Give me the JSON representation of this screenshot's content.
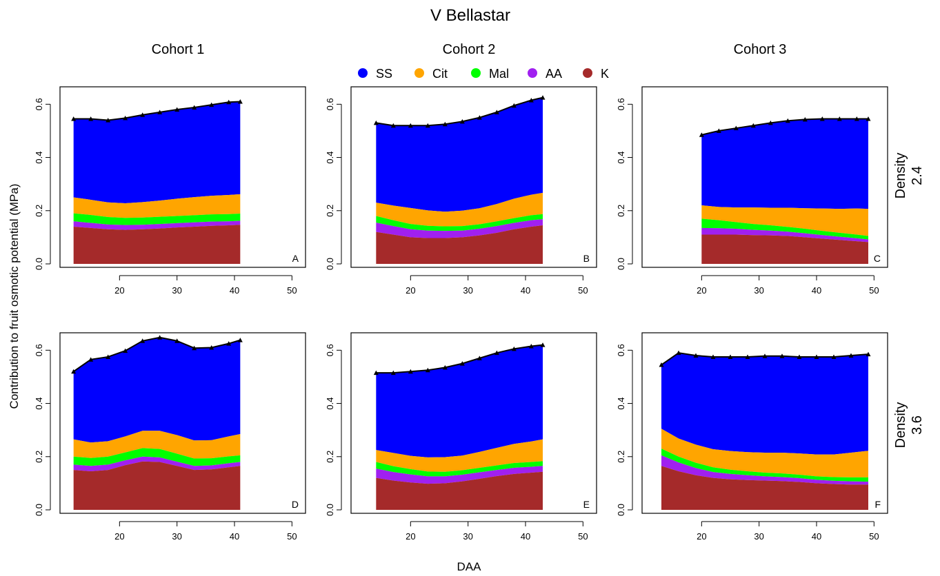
{
  "title": "V Bellastar",
  "xlabel": "DAA",
  "ylabel": "Contribution to fruit osmotic potential (MPa)",
  "columns": [
    "Cohort 1",
    "Cohort 2",
    "Cohort 3"
  ],
  "rows": [
    [
      "Density",
      "2.4"
    ],
    [
      "Density",
      "3.6"
    ]
  ],
  "colors": {
    "SS": "#0000FF",
    "Cit": "#FFA500",
    "Mal": "#00FF00",
    "AA": "#A020F0",
    "K": "#A52A2A",
    "outline": "#000000"
  },
  "legend": [
    {
      "name": "SS",
      "color": "#0000FF"
    },
    {
      "name": "Cit",
      "color": "#FFA500"
    },
    {
      "name": "Mal",
      "color": "#00FF00"
    },
    {
      "name": "AA",
      "color": "#A020F0"
    },
    {
      "name": "K",
      "color": "#A52A2A"
    }
  ],
  "chart_data": [
    {
      "type": "area",
      "panel": "A",
      "column": "Cohort 1",
      "row": "Density 2.4",
      "xlim": [
        10,
        52
      ],
      "ylim": [
        0,
        0.65
      ],
      "xticks": [
        20,
        30,
        40,
        50
      ],
      "yticks": [
        0.0,
        0.2,
        0.4,
        0.6
      ],
      "x": [
        12,
        15,
        18,
        21,
        24,
        27,
        30,
        33,
        36,
        39,
        41
      ],
      "K": [
        0.14,
        0.135,
        0.13,
        0.128,
        0.13,
        0.133,
        0.137,
        0.14,
        0.143,
        0.145,
        0.147
      ],
      "AA": [
        0.02,
        0.019,
        0.018,
        0.018,
        0.017,
        0.017,
        0.016,
        0.016,
        0.016,
        0.015,
        0.015
      ],
      "Mal": [
        0.03,
        0.03,
        0.028,
        0.027,
        0.027,
        0.027,
        0.027,
        0.027,
        0.027,
        0.027,
        0.027
      ],
      "Cit": [
        0.06,
        0.057,
        0.055,
        0.055,
        0.058,
        0.061,
        0.065,
        0.068,
        0.07,
        0.072,
        0.073
      ],
      "total": [
        0.545,
        0.545,
        0.54,
        0.548,
        0.56,
        0.57,
        0.58,
        0.588,
        0.598,
        0.608,
        0.61
      ]
    },
    {
      "type": "area",
      "panel": "B",
      "column": "Cohort 2",
      "row": "Density 2.4",
      "xlim": [
        10,
        52
      ],
      "ylim": [
        0,
        0.65
      ],
      "xticks": [
        20,
        30,
        40,
        50
      ],
      "yticks": [
        0.0,
        0.2,
        0.4,
        0.6
      ],
      "x": [
        14,
        17,
        20,
        23,
        26,
        29,
        32,
        35,
        38,
        41,
        43
      ],
      "K": [
        0.12,
        0.11,
        0.1,
        0.097,
        0.097,
        0.1,
        0.107,
        0.117,
        0.13,
        0.14,
        0.145
      ],
      "AA": [
        0.035,
        0.032,
        0.03,
        0.028,
        0.027,
        0.025,
        0.025,
        0.025,
        0.024,
        0.024,
        0.023
      ],
      "Mal": [
        0.025,
        0.022,
        0.02,
        0.018,
        0.017,
        0.017,
        0.017,
        0.018,
        0.018,
        0.019,
        0.019
      ],
      "Cit": [
        0.05,
        0.055,
        0.06,
        0.058,
        0.055,
        0.058,
        0.06,
        0.065,
        0.073,
        0.077,
        0.08
      ],
      "total": [
        0.53,
        0.52,
        0.52,
        0.52,
        0.525,
        0.535,
        0.55,
        0.57,
        0.595,
        0.615,
        0.625
      ]
    },
    {
      "type": "area",
      "panel": "C",
      "column": "Cohort 3",
      "row": "Density 2.4",
      "xlim": [
        10,
        52
      ],
      "ylim": [
        0,
        0.65
      ],
      "xticks": [
        20,
        30,
        40,
        50
      ],
      "yticks": [
        0.0,
        0.2,
        0.4,
        0.6
      ],
      "x": [
        20,
        23,
        26,
        29,
        32,
        35,
        38,
        41,
        44,
        47,
        49
      ],
      "K": [
        0.11,
        0.11,
        0.11,
        0.108,
        0.107,
        0.105,
        0.1,
        0.095,
        0.09,
        0.085,
        0.082
      ],
      "AA": [
        0.025,
        0.024,
        0.022,
        0.02,
        0.018,
        0.016,
        0.015,
        0.013,
        0.012,
        0.011,
        0.01
      ],
      "Mal": [
        0.035,
        0.03,
        0.025,
        0.022,
        0.02,
        0.018,
        0.017,
        0.016,
        0.015,
        0.014,
        0.013
      ],
      "Cit": [
        0.05,
        0.05,
        0.055,
        0.062,
        0.066,
        0.072,
        0.077,
        0.084,
        0.09,
        0.098,
        0.102
      ],
      "total": [
        0.485,
        0.5,
        0.51,
        0.52,
        0.53,
        0.538,
        0.543,
        0.545,
        0.545,
        0.545,
        0.545
      ]
    },
    {
      "type": "area",
      "panel": "D",
      "column": "Cohort 1",
      "row": "Density 3.6",
      "xlim": [
        10,
        52
      ],
      "ylim": [
        0,
        0.65
      ],
      "xticks": [
        20,
        30,
        40,
        50
      ],
      "yticks": [
        0.0,
        0.2,
        0.4,
        0.6
      ],
      "x": [
        12,
        15,
        18,
        21,
        24,
        27,
        30,
        33,
        36,
        39,
        41
      ],
      "K": [
        0.15,
        0.145,
        0.15,
        0.168,
        0.182,
        0.18,
        0.165,
        0.15,
        0.152,
        0.16,
        0.165
      ],
      "AA": [
        0.02,
        0.02,
        0.02,
        0.018,
        0.018,
        0.017,
        0.016,
        0.015,
        0.015,
        0.015,
        0.015
      ],
      "Mal": [
        0.03,
        0.03,
        0.03,
        0.03,
        0.032,
        0.032,
        0.03,
        0.028,
        0.027,
        0.026,
        0.025
      ],
      "Cit": [
        0.065,
        0.058,
        0.058,
        0.06,
        0.065,
        0.068,
        0.07,
        0.068,
        0.068,
        0.075,
        0.08
      ],
      "total": [
        0.52,
        0.565,
        0.575,
        0.598,
        0.635,
        0.648,
        0.635,
        0.608,
        0.61,
        0.625,
        0.638
      ]
    },
    {
      "type": "area",
      "panel": "E",
      "column": "Cohort 2",
      "row": "Density 3.6",
      "xlim": [
        10,
        52
      ],
      "ylim": [
        0,
        0.65
      ],
      "xticks": [
        20,
        30,
        40,
        50
      ],
      "yticks": [
        0.0,
        0.2,
        0.4,
        0.6
      ],
      "x": [
        14,
        17,
        20,
        23,
        26,
        29,
        32,
        35,
        38,
        41,
        43
      ],
      "K": [
        0.12,
        0.11,
        0.103,
        0.098,
        0.1,
        0.107,
        0.117,
        0.127,
        0.135,
        0.14,
        0.143
      ],
      "AA": [
        0.035,
        0.032,
        0.03,
        0.028,
        0.026,
        0.025,
        0.024,
        0.023,
        0.023,
        0.022,
        0.022
      ],
      "Mal": [
        0.025,
        0.022,
        0.02,
        0.018,
        0.017,
        0.017,
        0.017,
        0.017,
        0.018,
        0.018,
        0.018
      ],
      "Cit": [
        0.045,
        0.05,
        0.05,
        0.053,
        0.055,
        0.055,
        0.06,
        0.066,
        0.072,
        0.077,
        0.082
      ],
      "total": [
        0.515,
        0.515,
        0.52,
        0.525,
        0.535,
        0.55,
        0.57,
        0.59,
        0.605,
        0.615,
        0.62
      ]
    },
    {
      "type": "area",
      "panel": "F",
      "column": "Cohort 3",
      "row": "Density 3.6",
      "xlim": [
        10,
        52
      ],
      "ylim": [
        0,
        0.65
      ],
      "xticks": [
        20,
        30,
        40,
        50
      ],
      "yticks": [
        0.0,
        0.2,
        0.4,
        0.6
      ],
      "x": [
        13,
        16,
        19,
        22,
        25,
        28,
        31,
        34,
        37,
        40,
        43,
        46,
        49
      ],
      "K": [
        0.165,
        0.145,
        0.13,
        0.12,
        0.115,
        0.112,
        0.11,
        0.108,
        0.105,
        0.1,
        0.097,
        0.095,
        0.095
      ],
      "AA": [
        0.04,
        0.033,
        0.027,
        0.022,
        0.02,
        0.018,
        0.016,
        0.015,
        0.014,
        0.013,
        0.012,
        0.012,
        0.011
      ],
      "Mal": [
        0.025,
        0.022,
        0.02,
        0.018,
        0.016,
        0.015,
        0.014,
        0.014,
        0.013,
        0.013,
        0.014,
        0.015,
        0.016
      ],
      "Cit": [
        0.075,
        0.068,
        0.068,
        0.068,
        0.07,
        0.072,
        0.075,
        0.078,
        0.08,
        0.082,
        0.085,
        0.093,
        0.1
      ],
      "total": [
        0.545,
        0.59,
        0.58,
        0.575,
        0.575,
        0.575,
        0.578,
        0.578,
        0.575,
        0.575,
        0.575,
        0.58,
        0.585
      ]
    }
  ]
}
